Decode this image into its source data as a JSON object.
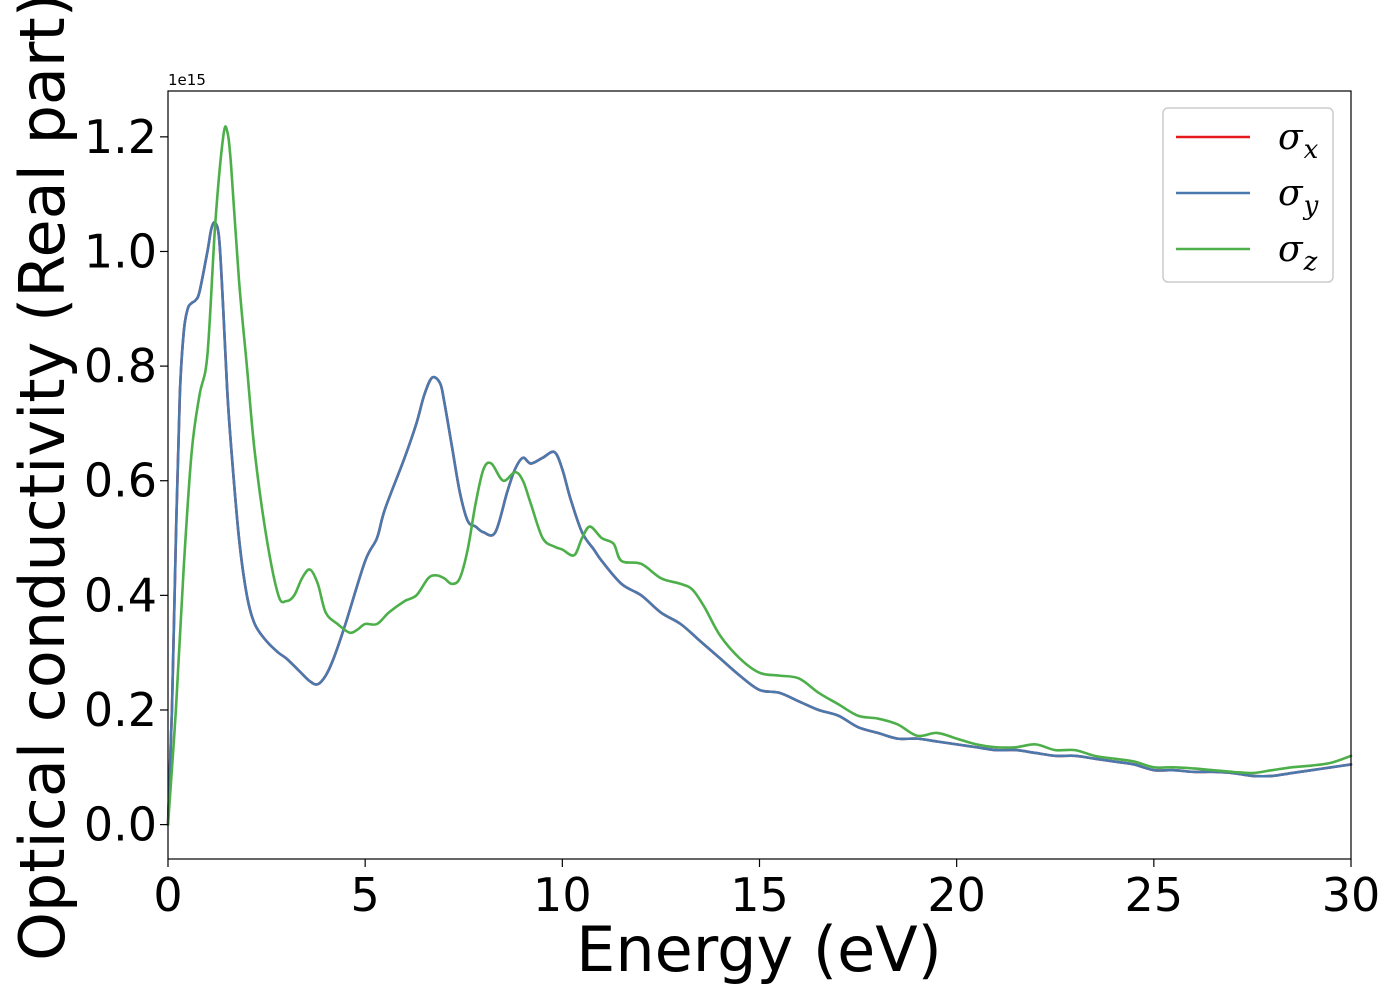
{
  "chart_data": {
    "type": "line",
    "xlabel": "Energy (eV)",
    "ylabel": "Optical conductivity (Real part)",
    "y_offset_label": "1e15",
    "y_scale": 1000000000000000.0,
    "xlim": [
      0,
      30
    ],
    "ylim": [
      -0.06,
      1.28
    ],
    "x_ticks": [
      0,
      5,
      10,
      15,
      20,
      25,
      30
    ],
    "x_tick_labels": [
      "0",
      "5",
      "10",
      "15",
      "20",
      "25",
      "30"
    ],
    "y_ticks": [
      0.0,
      0.2,
      0.4,
      0.6,
      0.8,
      1.0,
      1.2
    ],
    "y_tick_labels": [
      "0.0",
      "0.2",
      "0.4",
      "0.6",
      "0.8",
      "1.0",
      "1.2"
    ],
    "grid": false,
    "legend_position": "top-right",
    "series": [
      {
        "name": "σ",
        "subscript": "x",
        "color": "#e41a1c",
        "x": [
          0,
          0.1,
          0.2,
          0.3,
          0.4,
          0.5,
          0.6,
          0.7,
          0.8,
          1.0,
          1.1,
          1.2,
          1.3,
          1.4,
          1.5,
          1.6,
          1.8,
          2.0,
          2.2,
          2.5,
          2.8,
          3.0,
          3.3,
          3.6,
          3.8,
          4.0,
          4.2,
          4.5,
          5.0,
          5.3,
          5.5,
          6.0,
          6.3,
          6.5,
          6.7,
          6.9,
          7.0,
          7.2,
          7.4,
          7.6,
          7.8,
          8.0,
          8.3,
          8.6,
          8.8,
          9.0,
          9.2,
          9.5,
          9.8,
          10.0,
          10.2,
          10.5,
          10.8,
          11.0,
          11.5,
          12.0,
          12.5,
          13.0,
          13.5,
          14.0,
          14.5,
          15.0,
          15.5,
          16.0,
          16.5,
          17.0,
          17.5,
          18.0,
          18.5,
          19.0,
          19.5,
          20.0,
          20.5,
          21.0,
          21.5,
          22.0,
          22.5,
          23.0,
          23.5,
          24.0,
          24.5,
          25.0,
          25.5,
          26.0,
          26.5,
          27.0,
          27.5,
          28.0,
          28.5,
          29.0,
          29.5,
          30.0
        ],
        "y": [
          0.0,
          0.2,
          0.5,
          0.75,
          0.86,
          0.9,
          0.91,
          0.915,
          0.93,
          1.0,
          1.04,
          1.05,
          1.02,
          0.9,
          0.76,
          0.66,
          0.5,
          0.4,
          0.35,
          0.32,
          0.3,
          0.29,
          0.27,
          0.25,
          0.245,
          0.26,
          0.29,
          0.35,
          0.46,
          0.5,
          0.55,
          0.64,
          0.7,
          0.75,
          0.78,
          0.77,
          0.74,
          0.66,
          0.58,
          0.53,
          0.52,
          0.51,
          0.51,
          0.58,
          0.62,
          0.64,
          0.63,
          0.64,
          0.65,
          0.62,
          0.57,
          0.51,
          0.48,
          0.46,
          0.42,
          0.4,
          0.37,
          0.35,
          0.32,
          0.29,
          0.26,
          0.235,
          0.23,
          0.215,
          0.2,
          0.19,
          0.17,
          0.16,
          0.15,
          0.15,
          0.145,
          0.14,
          0.135,
          0.13,
          0.13,
          0.125,
          0.12,
          0.12,
          0.115,
          0.11,
          0.105,
          0.095,
          0.095,
          0.092,
          0.092,
          0.09,
          0.085,
          0.085,
          0.09,
          0.095,
          0.1,
          0.105
        ]
      },
      {
        "name": "σ",
        "subscript": "y",
        "color": "#4a79ae",
        "x": [
          0,
          0.1,
          0.2,
          0.3,
          0.4,
          0.5,
          0.6,
          0.7,
          0.8,
          1.0,
          1.1,
          1.2,
          1.3,
          1.4,
          1.5,
          1.6,
          1.8,
          2.0,
          2.2,
          2.5,
          2.8,
          3.0,
          3.3,
          3.6,
          3.8,
          4.0,
          4.2,
          4.5,
          5.0,
          5.3,
          5.5,
          6.0,
          6.3,
          6.5,
          6.7,
          6.9,
          7.0,
          7.2,
          7.4,
          7.6,
          7.8,
          8.0,
          8.3,
          8.6,
          8.8,
          9.0,
          9.2,
          9.5,
          9.8,
          10.0,
          10.2,
          10.5,
          10.8,
          11.0,
          11.5,
          12.0,
          12.5,
          13.0,
          13.5,
          14.0,
          14.5,
          15.0,
          15.5,
          16.0,
          16.5,
          17.0,
          17.5,
          18.0,
          18.5,
          19.0,
          19.5,
          20.0,
          20.5,
          21.0,
          21.5,
          22.0,
          22.5,
          23.0,
          23.5,
          24.0,
          24.5,
          25.0,
          25.5,
          26.0,
          26.5,
          27.0,
          27.5,
          28.0,
          28.5,
          29.0,
          29.5,
          30.0
        ],
        "y": [
          0.0,
          0.2,
          0.5,
          0.75,
          0.86,
          0.9,
          0.91,
          0.915,
          0.93,
          1.0,
          1.04,
          1.05,
          1.02,
          0.9,
          0.76,
          0.66,
          0.5,
          0.4,
          0.35,
          0.32,
          0.3,
          0.29,
          0.27,
          0.25,
          0.245,
          0.26,
          0.29,
          0.35,
          0.46,
          0.5,
          0.55,
          0.64,
          0.7,
          0.75,
          0.78,
          0.77,
          0.74,
          0.66,
          0.58,
          0.53,
          0.52,
          0.51,
          0.51,
          0.58,
          0.62,
          0.64,
          0.63,
          0.64,
          0.65,
          0.62,
          0.57,
          0.51,
          0.48,
          0.46,
          0.42,
          0.4,
          0.37,
          0.35,
          0.32,
          0.29,
          0.26,
          0.235,
          0.23,
          0.215,
          0.2,
          0.19,
          0.17,
          0.16,
          0.15,
          0.15,
          0.145,
          0.14,
          0.135,
          0.13,
          0.13,
          0.125,
          0.12,
          0.12,
          0.115,
          0.11,
          0.105,
          0.095,
          0.095,
          0.092,
          0.092,
          0.09,
          0.085,
          0.085,
          0.09,
          0.095,
          0.1,
          0.105
        ]
      },
      {
        "name": "σ",
        "subscript": "z",
        "color": "#4daf4a",
        "x": [
          0,
          0.2,
          0.4,
          0.6,
          0.8,
          1.0,
          1.2,
          1.4,
          1.5,
          1.6,
          1.8,
          2.0,
          2.2,
          2.5,
          2.8,
          3.0,
          3.2,
          3.4,
          3.6,
          3.8,
          4.0,
          4.3,
          4.6,
          4.8,
          5.0,
          5.3,
          5.6,
          6.0,
          6.3,
          6.6,
          6.8,
          7.0,
          7.2,
          7.4,
          7.6,
          7.8,
          8.0,
          8.2,
          8.5,
          8.8,
          9.0,
          9.2,
          9.5,
          9.8,
          10.0,
          10.3,
          10.5,
          10.7,
          11.0,
          11.3,
          11.5,
          12.0,
          12.5,
          13.0,
          13.3,
          13.6,
          14.0,
          14.5,
          15.0,
          15.5,
          16.0,
          16.5,
          17.0,
          17.5,
          18.0,
          18.5,
          19.0,
          19.5,
          20.0,
          20.5,
          21.0,
          21.5,
          22.0,
          22.5,
          23.0,
          23.5,
          24.0,
          24.5,
          25.0,
          25.5,
          26.0,
          26.5,
          27.0,
          27.5,
          28.0,
          28.5,
          29.0,
          29.5,
          30.0
        ],
        "y": [
          0.0,
          0.2,
          0.45,
          0.65,
          0.75,
          0.82,
          1.05,
          1.2,
          1.21,
          1.15,
          0.95,
          0.8,
          0.65,
          0.5,
          0.4,
          0.39,
          0.4,
          0.43,
          0.445,
          0.42,
          0.37,
          0.35,
          0.335,
          0.34,
          0.35,
          0.35,
          0.37,
          0.39,
          0.4,
          0.43,
          0.435,
          0.43,
          0.42,
          0.43,
          0.48,
          0.56,
          0.62,
          0.63,
          0.6,
          0.615,
          0.6,
          0.56,
          0.5,
          0.485,
          0.48,
          0.47,
          0.5,
          0.52,
          0.5,
          0.49,
          0.46,
          0.455,
          0.43,
          0.42,
          0.41,
          0.38,
          0.33,
          0.29,
          0.265,
          0.26,
          0.255,
          0.23,
          0.21,
          0.19,
          0.185,
          0.175,
          0.155,
          0.16,
          0.15,
          0.14,
          0.135,
          0.135,
          0.14,
          0.13,
          0.13,
          0.12,
          0.115,
          0.11,
          0.1,
          0.1,
          0.098,
          0.095,
          0.092,
          0.09,
          0.095,
          0.1,
          0.103,
          0.108,
          0.12
        ]
      }
    ]
  }
}
